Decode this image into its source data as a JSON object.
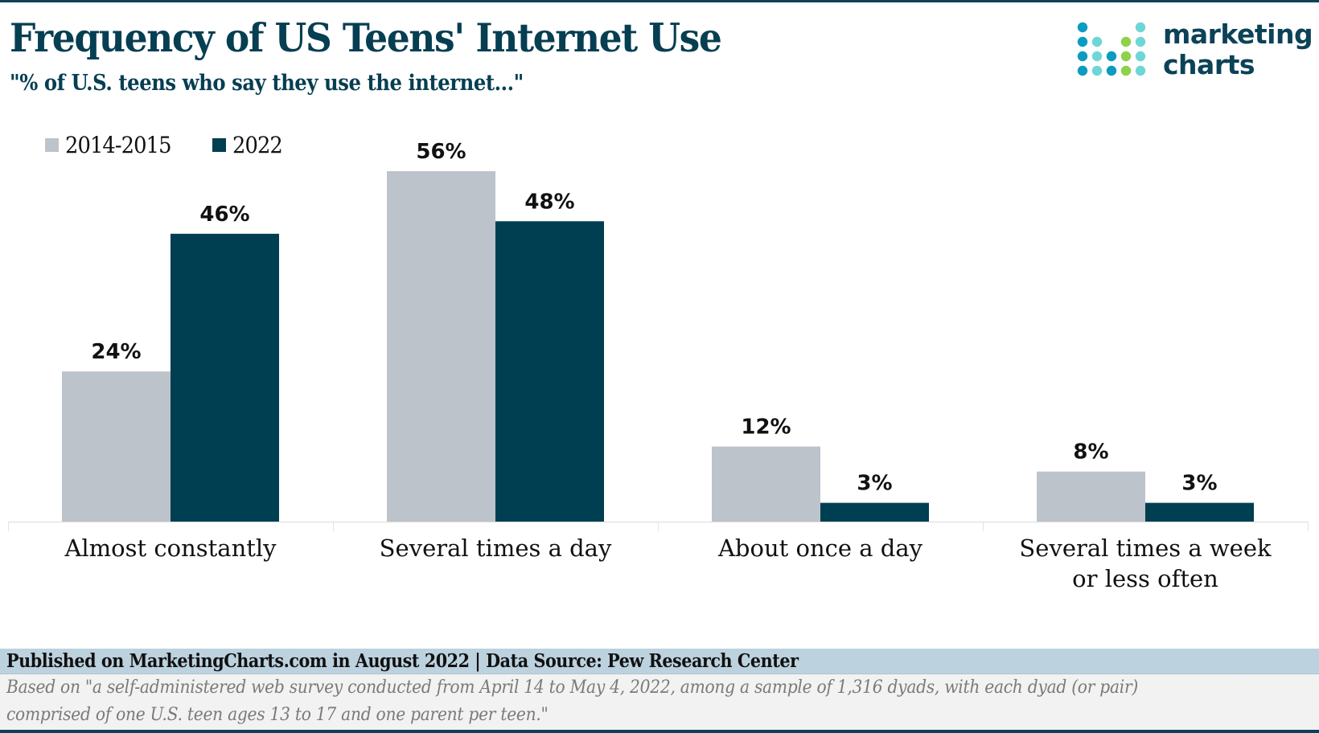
{
  "header": {
    "title": "Frequency of US Teens' Internet Use",
    "subtitle": "\"% of U.S. teens who say they use the internet...\""
  },
  "logo": {
    "line1": "marketing",
    "line2": "charts",
    "icon": "dot-grid-logo-icon",
    "dot_colors": {
      "blue": "#0a9cc2",
      "teal": "#6fd6d6",
      "green": "#8ed14a"
    }
  },
  "colors": {
    "series_2014": "#bcc3ca",
    "series_2022": "#003e52",
    "brand_dark": "#0b4257",
    "published_band": "#bcd2de",
    "notes_band": "#f2f2f2"
  },
  "chart_data": {
    "type": "bar",
    "title": "Frequency of US Teens' Internet Use",
    "subtitle": "\"% of U.S. teens who say they use the internet...\"",
    "xlabel": "",
    "ylabel": "",
    "ylim": [
      0,
      56
    ],
    "grid": false,
    "legend_position": "top-left",
    "categories": [
      [
        "Almost constantly"
      ],
      [
        "Several times a day"
      ],
      [
        "About once a day"
      ],
      [
        "Several times a week",
        "or less often"
      ]
    ],
    "series": [
      {
        "name": "2014-2015",
        "values": [
          24,
          56,
          12,
          8
        ],
        "labels": [
          "24%",
          "56%",
          "12%",
          "8%"
        ]
      },
      {
        "name": "2022",
        "values": [
          46,
          48,
          3,
          3
        ],
        "labels": [
          "46%",
          "48%",
          "3%",
          "3%"
        ]
      }
    ]
  },
  "legend": {
    "items": [
      {
        "label": "2014-2015"
      },
      {
        "label": "2022"
      }
    ]
  },
  "footer": {
    "published": "Published on MarketingCharts.com in August 2022 | Data Source: Pew Research Center",
    "note_line1": "Based on \"a self-administered web survey conducted from April 14 to May 4, 2022, among a sample of 1,316 dyads, with each dyad (or pair)",
    "note_line2": "comprised of one U.S. teen ages 13 to 17 and one parent per teen.\""
  }
}
